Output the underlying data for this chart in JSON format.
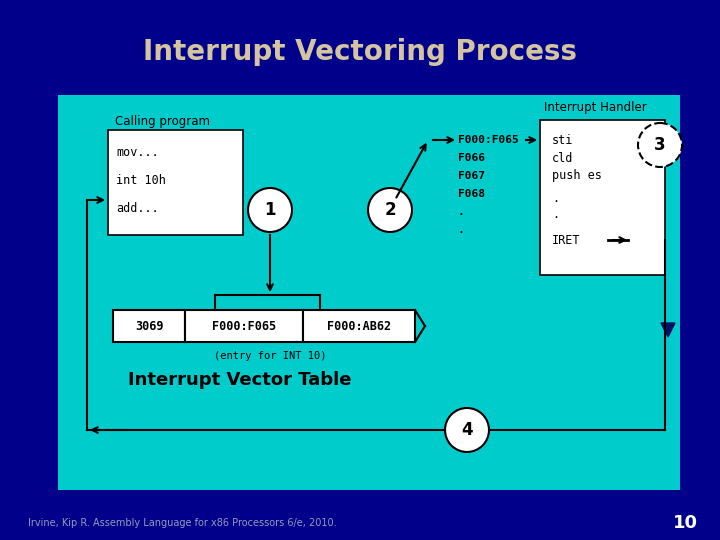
{
  "title": "Interrupt Vectoring Process",
  "title_color": "#D4C5A0",
  "title_fontsize": 20,
  "bg_outer": "#00008B",
  "bg_inner": "#00CCCC",
  "footer_text": "Irvine, Kip R. Assembly Language for x86 Processors 6/e, 2010.",
  "footer_num": "10",
  "calling_program_label": "Calling program",
  "interrupt_handler_label": "Interrupt Handler",
  "ivt_label": "Interrupt Vector Table",
  "ivt_entry_label": "(entry for INT 10)",
  "ivt_cells": [
    "3069",
    "F000:F065",
    "F000:AB62"
  ],
  "handler_addr_lines": [
    "F000:F065",
    "F066",
    "F067",
    "F068",
    ".",
    "."
  ],
  "handler_code_lines": [
    "sti",
    "cld",
    "push es",
    ".",
    ".",
    "IRET"
  ],
  "calling_code_lines": [
    "mov...",
    "int 10h",
    "add..."
  ]
}
